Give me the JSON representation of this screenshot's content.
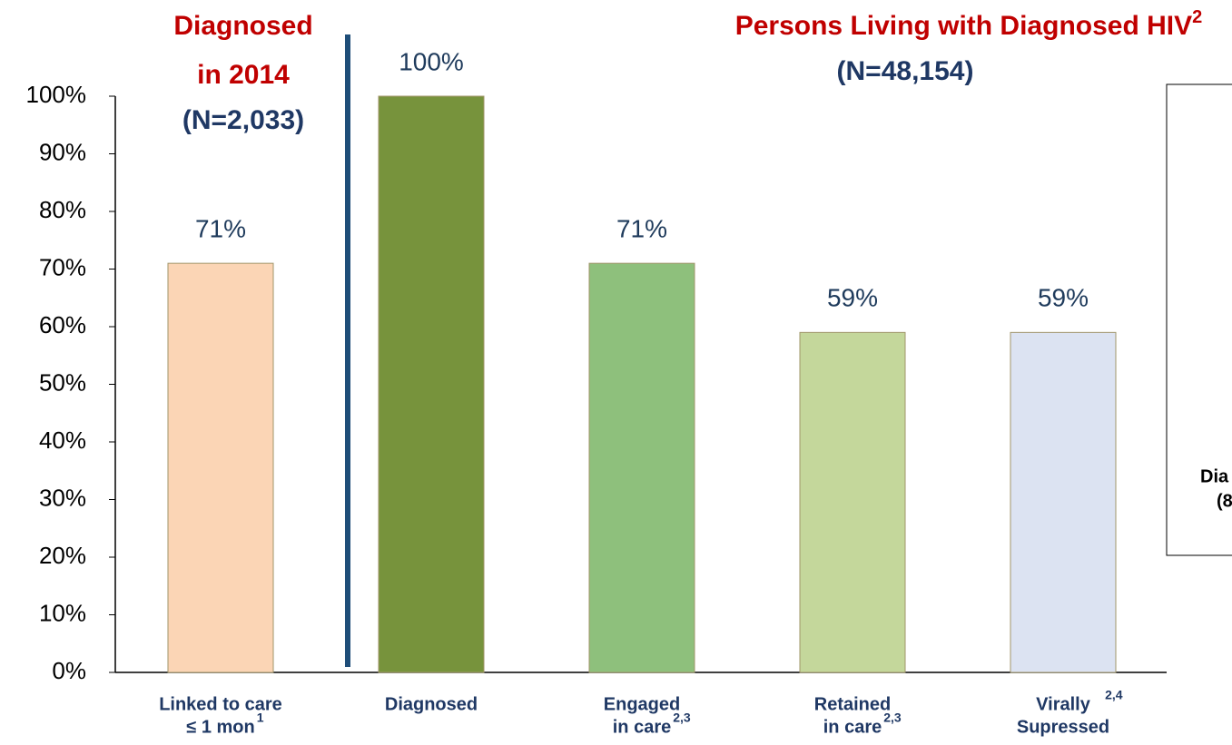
{
  "chart_data": {
    "type": "bar",
    "left_title": [
      "Diagnosed",
      "in 2014",
      "(N=2,033)"
    ],
    "title": "Persons Living with Diagnosed HIV",
    "title_note": "2",
    "subtitle": "(N=48,154)",
    "categories": [
      [
        "Linked to care",
        "≤ 1 mon"
      ],
      [
        "Diagnosed"
      ],
      [
        "Engaged",
        "in care"
      ],
      [
        "Retained",
        "in care"
      ],
      [
        "Virally",
        "Supressed"
      ]
    ],
    "category_notes": [
      "1",
      null,
      "2,3",
      "2,3",
      "2,4"
    ],
    "values": [
      71,
      100,
      71,
      59,
      59
    ],
    "value_labels": [
      "71%",
      "100%",
      "71%",
      "59%",
      "59%"
    ],
    "colors": [
      "#fbd5b5",
      "#77933c",
      "#8ec07c",
      "#c4d79b",
      "#dce3f2"
    ],
    "ylim": [
      0,
      100
    ],
    "yticks": [
      {
        "value": 0,
        "label": "0%"
      },
      {
        "value": 10,
        "label": "10%"
      },
      {
        "value": 20,
        "label": "20%"
      },
      {
        "value": 30,
        "label": "30%"
      },
      {
        "value": 40,
        "label": "40%"
      },
      {
        "value": 50,
        "label": "50%"
      },
      {
        "value": 60,
        "label": "60%"
      },
      {
        "value": 70,
        "label": "70%"
      },
      {
        "value": 80,
        "label": "80%"
      },
      {
        "value": 90,
        "label": "90%"
      },
      {
        "value": 100,
        "label": "100%"
      }
    ],
    "grid": false,
    "side_panel": [
      "Dia",
      "(8"
    ]
  }
}
